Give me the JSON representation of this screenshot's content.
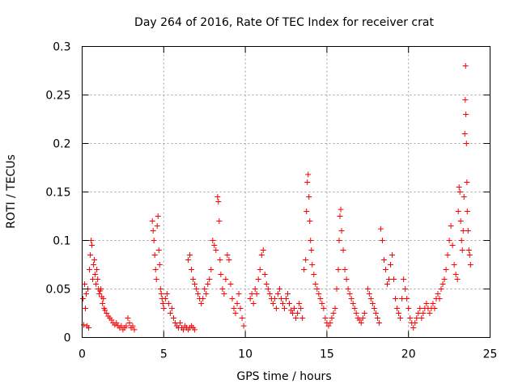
{
  "chart_data": {
    "type": "scatter",
    "title": "Day 264 of 2016, Rate Of TEC Index for receiver crat",
    "xlabel": "GPS time / hours",
    "ylabel": "ROTI / TECUs",
    "xlim": [
      0,
      25
    ],
    "ylim": [
      0,
      0.3
    ],
    "xticks": [
      0,
      5,
      10,
      15,
      20,
      25
    ],
    "xtick_labels": [
      "0",
      "5",
      "10",
      "15",
      "20",
      "25"
    ],
    "yticks": [
      0,
      0.05,
      0.1,
      0.15,
      0.2,
      0.25,
      0.3
    ],
    "ytick_labels": [
      "0",
      "0.05",
      "0.1",
      "0.15",
      "0.2",
      "0.25",
      "0.3"
    ],
    "grid": true,
    "marker": "+",
    "marker_color": "#ff0000",
    "series": [
      {
        "name": "ROTI",
        "points": [
          [
            0.05,
            0.04
          ],
          [
            0.1,
            0.013
          ],
          [
            0.15,
            0.055
          ],
          [
            0.2,
            0.03
          ],
          [
            0.25,
            0.045
          ],
          [
            0.3,
            0.012
          ],
          [
            0.35,
            0.05
          ],
          [
            0.4,
            0.01
          ],
          [
            0.45,
            0.07
          ],
          [
            0.5,
            0.085
          ],
          [
            0.55,
            0.1
          ],
          [
            0.6,
            0.095
          ],
          [
            0.65,
            0.06
          ],
          [
            0.7,
            0.075
          ],
          [
            0.75,
            0.08
          ],
          [
            0.8,
            0.065
          ],
          [
            0.85,
            0.055
          ],
          [
            0.9,
            0.07
          ],
          [
            0.95,
            0.06
          ],
          [
            1.0,
            0.05
          ],
          [
            1.05,
            0.045
          ],
          [
            1.1,
            0.048
          ],
          [
            1.15,
            0.05
          ],
          [
            1.2,
            0.042
          ],
          [
            1.25,
            0.035
          ],
          [
            1.3,
            0.04
          ],
          [
            1.35,
            0.03
          ],
          [
            1.4,
            0.028
          ],
          [
            1.5,
            0.025
          ],
          [
            1.6,
            0.022
          ],
          [
            1.7,
            0.02
          ],
          [
            1.8,
            0.018
          ],
          [
            1.9,
            0.015
          ],
          [
            2.0,
            0.013
          ],
          [
            2.1,
            0.015
          ],
          [
            2.2,
            0.012
          ],
          [
            2.3,
            0.01
          ],
          [
            2.4,
            0.012
          ],
          [
            2.5,
            0.008
          ],
          [
            2.6,
            0.01
          ],
          [
            2.7,
            0.012
          ],
          [
            2.8,
            0.02
          ],
          [
            2.9,
            0.015
          ],
          [
            3.0,
            0.01
          ],
          [
            3.1,
            0.012
          ],
          [
            3.2,
            0.008
          ],
          [
            4.3,
            0.12
          ],
          [
            4.35,
            0.11
          ],
          [
            4.4,
            0.1
          ],
          [
            4.45,
            0.085
          ],
          [
            4.5,
            0.07
          ],
          [
            4.55,
            0.06
          ],
          [
            4.6,
            0.115
          ],
          [
            4.65,
            0.125
          ],
          [
            4.7,
            0.09
          ],
          [
            4.75,
            0.075
          ],
          [
            4.8,
            0.05
          ],
          [
            4.85,
            0.045
          ],
          [
            4.9,
            0.04
          ],
          [
            4.95,
            0.035
          ],
          [
            5.0,
            0.03
          ],
          [
            5.1,
            0.04
          ],
          [
            5.2,
            0.045
          ],
          [
            5.3,
            0.035
          ],
          [
            5.4,
            0.025
          ],
          [
            5.5,
            0.03
          ],
          [
            5.6,
            0.02
          ],
          [
            5.7,
            0.015
          ],
          [
            5.8,
            0.012
          ],
          [
            5.9,
            0.01
          ],
          [
            6.0,
            0.015
          ],
          [
            6.1,
            0.01
          ],
          [
            6.2,
            0.008
          ],
          [
            6.3,
            0.012
          ],
          [
            6.4,
            0.01
          ],
          [
            6.5,
            0.008
          ],
          [
            6.6,
            0.01
          ],
          [
            6.7,
            0.012
          ],
          [
            6.8,
            0.01
          ],
          [
            6.9,
            0.008
          ],
          [
            6.5,
            0.08
          ],
          [
            6.6,
            0.085
          ],
          [
            6.7,
            0.07
          ],
          [
            6.8,
            0.06
          ],
          [
            6.9,
            0.055
          ],
          [
            7.0,
            0.05
          ],
          [
            7.1,
            0.045
          ],
          [
            7.2,
            0.04
          ],
          [
            7.3,
            0.035
          ],
          [
            7.4,
            0.04
          ],
          [
            7.5,
            0.05
          ],
          [
            7.6,
            0.045
          ],
          [
            7.7,
            0.055
          ],
          [
            7.8,
            0.06
          ],
          [
            7.9,
            0.07
          ],
          [
            8.0,
            0.1
          ],
          [
            8.1,
            0.095
          ],
          [
            8.2,
            0.09
          ],
          [
            8.3,
            0.145
          ],
          [
            8.35,
            0.14
          ],
          [
            8.4,
            0.12
          ],
          [
            8.45,
            0.08
          ],
          [
            8.5,
            0.065
          ],
          [
            8.6,
            0.05
          ],
          [
            8.7,
            0.045
          ],
          [
            8.8,
            0.06
          ],
          [
            8.9,
            0.085
          ],
          [
            9.0,
            0.08
          ],
          [
            9.1,
            0.055
          ],
          [
            9.2,
            0.04
          ],
          [
            9.3,
            0.03
          ],
          [
            9.4,
            0.025
          ],
          [
            9.5,
            0.035
          ],
          [
            9.6,
            0.045
          ],
          [
            9.7,
            0.03
          ],
          [
            9.8,
            0.02
          ],
          [
            9.9,
            0.012
          ],
          [
            10.3,
            0.04
          ],
          [
            10.4,
            0.045
          ],
          [
            10.5,
            0.035
          ],
          [
            10.6,
            0.05
          ],
          [
            10.7,
            0.045
          ],
          [
            10.8,
            0.06
          ],
          [
            10.9,
            0.07
          ],
          [
            11.0,
            0.085
          ],
          [
            11.1,
            0.09
          ],
          [
            11.2,
            0.065
          ],
          [
            11.3,
            0.055
          ],
          [
            11.4,
            0.05
          ],
          [
            11.5,
            0.045
          ],
          [
            11.6,
            0.04
          ],
          [
            11.7,
            0.035
          ],
          [
            11.8,
            0.04
          ],
          [
            11.9,
            0.03
          ],
          [
            12.0,
            0.045
          ],
          [
            12.1,
            0.05
          ],
          [
            12.2,
            0.04
          ],
          [
            12.3,
            0.035
          ],
          [
            12.4,
            0.03
          ],
          [
            12.5,
            0.04
          ],
          [
            12.6,
            0.045
          ],
          [
            12.7,
            0.035
          ],
          [
            12.8,
            0.028
          ],
          [
            12.9,
            0.025
          ],
          [
            13.0,
            0.03
          ],
          [
            13.1,
            0.02
          ],
          [
            13.2,
            0.025
          ],
          [
            13.3,
            0.035
          ],
          [
            13.4,
            0.03
          ],
          [
            13.5,
            0.02
          ],
          [
            13.6,
            0.07
          ],
          [
            13.7,
            0.08
          ],
          [
            13.75,
            0.13
          ],
          [
            13.8,
            0.16
          ],
          [
            13.85,
            0.168
          ],
          [
            13.9,
            0.145
          ],
          [
            13.95,
            0.12
          ],
          [
            14.0,
            0.1
          ],
          [
            14.05,
            0.09
          ],
          [
            14.1,
            0.075
          ],
          [
            14.2,
            0.065
          ],
          [
            14.3,
            0.055
          ],
          [
            14.4,
            0.05
          ],
          [
            14.5,
            0.045
          ],
          [
            14.6,
            0.04
          ],
          [
            14.7,
            0.035
          ],
          [
            14.8,
            0.03
          ],
          [
            14.9,
            0.02
          ],
          [
            15.0,
            0.015
          ],
          [
            15.1,
            0.012
          ],
          [
            15.2,
            0.015
          ],
          [
            15.3,
            0.02
          ],
          [
            15.4,
            0.025
          ],
          [
            15.5,
            0.03
          ],
          [
            15.6,
            0.05
          ],
          [
            15.7,
            0.07
          ],
          [
            15.75,
            0.1
          ],
          [
            15.8,
            0.125
          ],
          [
            15.85,
            0.132
          ],
          [
            15.9,
            0.11
          ],
          [
            16.0,
            0.09
          ],
          [
            16.1,
            0.07
          ],
          [
            16.2,
            0.06
          ],
          [
            16.3,
            0.05
          ],
          [
            16.4,
            0.045
          ],
          [
            16.5,
            0.04
          ],
          [
            16.6,
            0.035
          ],
          [
            16.7,
            0.03
          ],
          [
            16.8,
            0.025
          ],
          [
            16.9,
            0.02
          ],
          [
            17.0,
            0.018
          ],
          [
            17.1,
            0.015
          ],
          [
            17.2,
            0.02
          ],
          [
            17.3,
            0.025
          ],
          [
            17.5,
            0.05
          ],
          [
            17.6,
            0.045
          ],
          [
            17.7,
            0.04
          ],
          [
            17.8,
            0.035
          ],
          [
            17.9,
            0.03
          ],
          [
            18.0,
            0.025
          ],
          [
            18.1,
            0.02
          ],
          [
            18.2,
            0.015
          ],
          [
            18.3,
            0.112
          ],
          [
            18.4,
            0.1
          ],
          [
            18.5,
            0.08
          ],
          [
            18.6,
            0.07
          ],
          [
            18.7,
            0.055
          ],
          [
            18.8,
            0.06
          ],
          [
            18.9,
            0.075
          ],
          [
            19.0,
            0.085
          ],
          [
            19.1,
            0.06
          ],
          [
            19.2,
            0.04
          ],
          [
            19.3,
            0.03
          ],
          [
            19.4,
            0.025
          ],
          [
            19.5,
            0.02
          ],
          [
            19.6,
            0.04
          ],
          [
            19.7,
            0.06
          ],
          [
            19.8,
            0.05
          ],
          [
            19.9,
            0.04
          ],
          [
            20.0,
            0.03
          ],
          [
            20.1,
            0.02
          ],
          [
            20.2,
            0.015
          ],
          [
            20.3,
            0.01
          ],
          [
            20.4,
            0.015
          ],
          [
            20.5,
            0.02
          ],
          [
            20.6,
            0.025
          ],
          [
            20.7,
            0.03
          ],
          [
            20.8,
            0.02
          ],
          [
            20.9,
            0.025
          ],
          [
            21.0,
            0.03
          ],
          [
            21.1,
            0.035
          ],
          [
            21.2,
            0.03
          ],
          [
            21.3,
            0.025
          ],
          [
            21.4,
            0.03
          ],
          [
            21.5,
            0.035
          ],
          [
            21.6,
            0.03
          ],
          [
            21.7,
            0.04
          ],
          [
            21.8,
            0.045
          ],
          [
            21.9,
            0.04
          ],
          [
            22.0,
            0.05
          ],
          [
            22.1,
            0.055
          ],
          [
            22.2,
            0.06
          ],
          [
            22.3,
            0.07
          ],
          [
            22.4,
            0.085
          ],
          [
            22.5,
            0.1
          ],
          [
            22.6,
            0.115
          ],
          [
            22.7,
            0.095
          ],
          [
            22.8,
            0.075
          ],
          [
            22.9,
            0.065
          ],
          [
            23.0,
            0.06
          ],
          [
            23.05,
            0.13
          ],
          [
            23.1,
            0.155
          ],
          [
            23.15,
            0.15
          ],
          [
            23.2,
            0.12
          ],
          [
            23.25,
            0.1
          ],
          [
            23.3,
            0.09
          ],
          [
            23.35,
            0.11
          ],
          [
            23.4,
            0.145
          ],
          [
            23.45,
            0.21
          ],
          [
            23.48,
            0.245
          ],
          [
            23.5,
            0.28
          ],
          [
            23.52,
            0.23
          ],
          [
            23.55,
            0.2
          ],
          [
            23.58,
            0.16
          ],
          [
            23.6,
            0.13
          ],
          [
            23.65,
            0.11
          ],
          [
            23.7,
            0.09
          ],
          [
            23.75,
            0.085
          ],
          [
            23.8,
            0.075
          ]
        ]
      }
    ]
  }
}
